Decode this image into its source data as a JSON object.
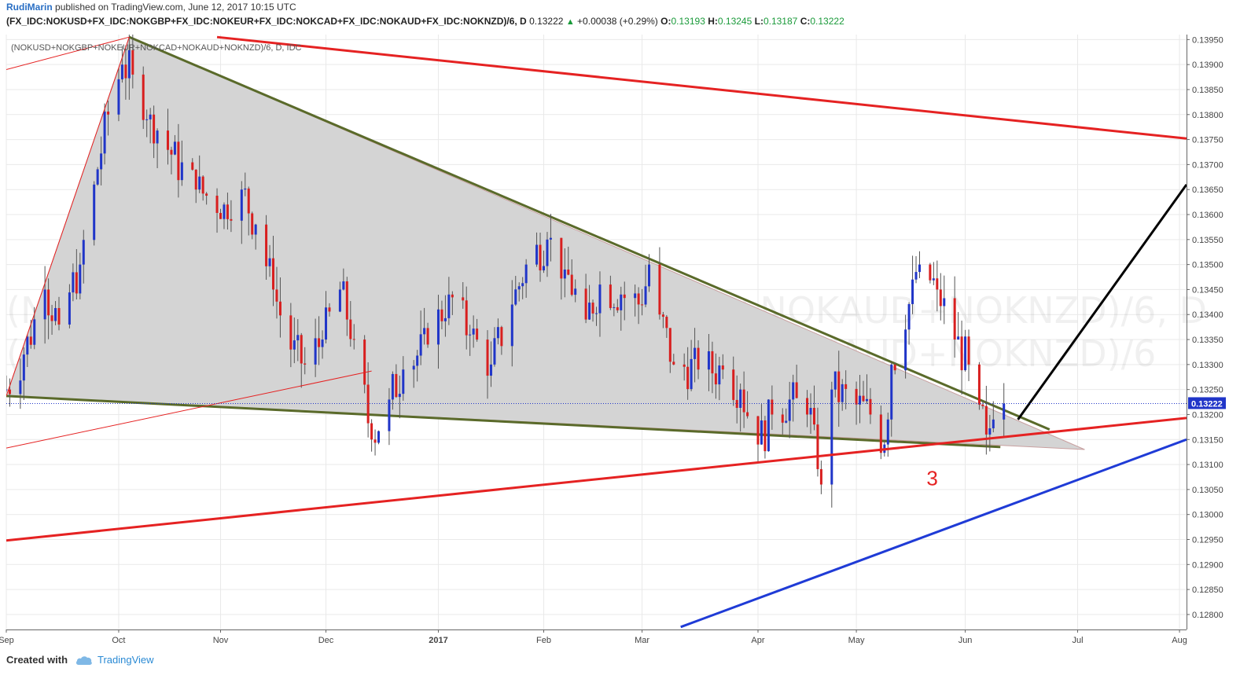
{
  "header": {
    "author": "RudiMarin",
    "published": "published on TradingView.com, June 12, 2017 10:15 UTC",
    "symbol": "(FX_IDC:NOKUSD+FX_IDC:NOKGBP+FX_IDC:NOKEUR+FX_IDC:NOKCAD+FX_IDC:NOKAUD+FX_IDC:NOKNZD)/6, D",
    "last": "0.13222",
    "change": "+0.00038 (+0.29%)",
    "o_label": "O:",
    "o": "0.13193",
    "h_label": "H:",
    "h": "0.13245",
    "l_label": "L:",
    "l": "0.13187",
    "c_label": "C:",
    "c": "0.13222"
  },
  "legend_label": "(NOKUSD+NOKGBP+NOKEUR+NOKCAD+NOKAUD+NOKNZD)/6, D, IDC",
  "watermark": [
    "(NOKUSD+NOKGBP+NOKEUR+NOKCAD+NOKAUD+NOKNZD)/6, D",
    "(NOKUSD+NOKGBP+NOKEUR+NOKCAD+NOKAUD+NOKNZD)/6"
  ],
  "annotation_text": "3",
  "footer": {
    "created": "Created with",
    "brand": "TradingView"
  },
  "colors": {
    "up": "#2035c8",
    "down": "#d81f1f",
    "trend": "#e52222",
    "channel": "#1f3bd6",
    "triangle_edge": "#5a6a2a",
    "triangle_fill": "#d4d4d4"
  },
  "chart_data": {
    "type": "candlestick",
    "title": "(NOKUSD+NOKGBP+NOKEUR+NOKCAD+NOKAUD+NOKNZD)/6, D, IDC",
    "ylim": [
      0.1277,
      0.1396
    ],
    "y_ticks": [
      "0.13950",
      "0.13900",
      "0.13850",
      "0.13800",
      "0.13750",
      "0.13700",
      "0.13650",
      "0.13600",
      "0.13550",
      "0.13500",
      "0.13450",
      "0.13400",
      "0.13350",
      "0.13300",
      "0.13250",
      "0.13200",
      "0.13150",
      "0.13100",
      "0.13050",
      "0.13000",
      "0.12950",
      "0.12900",
      "0.12850",
      "0.12800"
    ],
    "x_ticks": [
      {
        "label": "Sep",
        "date": "2016-09-01"
      },
      {
        "label": "Oct",
        "date": "2016-10-03"
      },
      {
        "label": "Nov",
        "date": "2016-11-01"
      },
      {
        "label": "Dec",
        "date": "2016-12-01"
      },
      {
        "label": "2017",
        "date": "2017-01-02"
      },
      {
        "label": "Feb",
        "date": "2017-02-01"
      },
      {
        "label": "Mar",
        "date": "2017-03-01"
      },
      {
        "label": "Apr",
        "date": "2017-04-03"
      },
      {
        "label": "May",
        "date": "2017-05-01"
      },
      {
        "label": "Jun",
        "date": "2017-06-01"
      },
      {
        "label": "Jul",
        "date": "2017-07-03"
      },
      {
        "label": "Aug",
        "date": "2017-08-01"
      }
    ],
    "xlim": [
      "2016-09-01",
      "2017-08-03"
    ],
    "last_price_label": "0.13222",
    "last_price": 0.13222,
    "anchors": [
      {
        "date": "2016-09-01",
        "close": 0.1325
      },
      {
        "date": "2016-09-06",
        "close": 0.1332
      },
      {
        "date": "2016-09-12",
        "close": 0.1345
      },
      {
        "date": "2016-09-16",
        "close": 0.1338
      },
      {
        "date": "2016-09-22",
        "close": 0.135
      },
      {
        "date": "2016-09-26",
        "close": 0.1366
      },
      {
        "date": "2016-09-30",
        "close": 0.138
      },
      {
        "date": "2016-10-04",
        "close": 0.139
      },
      {
        "date": "2016-10-07",
        "close": 0.1388
      },
      {
        "date": "2016-10-12",
        "close": 0.138
      },
      {
        "date": "2016-10-18",
        "close": 0.1372
      },
      {
        "date": "2016-10-25",
        "close": 0.1365
      },
      {
        "date": "2016-11-02",
        "close": 0.1362
      },
      {
        "date": "2016-11-07",
        "close": 0.1365
      },
      {
        "date": "2016-11-11",
        "close": 0.1358
      },
      {
        "date": "2016-11-16",
        "close": 0.1345
      },
      {
        "date": "2016-11-21",
        "close": 0.1333
      },
      {
        "date": "2016-11-25",
        "close": 0.133
      },
      {
        "date": "2016-11-30",
        "close": 0.1335
      },
      {
        "date": "2016-12-05",
        "close": 0.1345
      },
      {
        "date": "2016-12-09",
        "close": 0.1335
      },
      {
        "date": "2016-12-14",
        "close": 0.1315
      },
      {
        "date": "2016-12-19",
        "close": 0.1323
      },
      {
        "date": "2016-12-23",
        "close": 0.1329
      },
      {
        "date": "2016-12-30",
        "close": 0.1334
      },
      {
        "date": "2017-01-05",
        "close": 0.1344
      },
      {
        "date": "2017-01-11",
        "close": 0.1336
      },
      {
        "date": "2017-01-17",
        "close": 0.133
      },
      {
        "date": "2017-01-23",
        "close": 0.1342
      },
      {
        "date": "2017-01-27",
        "close": 0.135
      },
      {
        "date": "2017-02-02",
        "close": 0.1355
      },
      {
        "date": "2017-02-07",
        "close": 0.1349
      },
      {
        "date": "2017-02-13",
        "close": 0.1339
      },
      {
        "date": "2017-02-17",
        "close": 0.1346
      },
      {
        "date": "2017-02-23",
        "close": 0.1344
      },
      {
        "date": "2017-03-01",
        "close": 0.1342
      },
      {
        "date": "2017-03-03",
        "close": 0.135
      },
      {
        "date": "2017-03-06",
        "close": 0.134
      },
      {
        "date": "2017-03-10",
        "close": 0.133
      },
      {
        "date": "2017-03-17",
        "close": 0.1329
      },
      {
        "date": "2017-03-24",
        "close": 0.1329
      },
      {
        "date": "2017-03-29",
        "close": 0.1325
      },
      {
        "date": "2017-04-03",
        "close": 0.1314
      },
      {
        "date": "2017-04-07",
        "close": 0.132
      },
      {
        "date": "2017-04-12",
        "close": 0.1323
      },
      {
        "date": "2017-04-17",
        "close": 0.132
      },
      {
        "date": "2017-04-19",
        "close": 0.1318
      },
      {
        "date": "2017-04-21",
        "close": 0.1306
      },
      {
        "date": "2017-04-24",
        "close": 0.1325
      },
      {
        "date": "2017-05-01",
        "close": 0.1322
      },
      {
        "date": "2017-05-05",
        "close": 0.132
      },
      {
        "date": "2017-05-09",
        "close": 0.1314
      },
      {
        "date": "2017-05-11",
        "close": 0.133
      },
      {
        "date": "2017-05-15",
        "close": 0.1337
      },
      {
        "date": "2017-05-17",
        "close": 0.1347
      },
      {
        "date": "2017-05-19",
        "close": 0.135
      },
      {
        "date": "2017-05-24",
        "close": 0.1345
      },
      {
        "date": "2017-05-29",
        "close": 0.1335
      },
      {
        "date": "2017-06-02",
        "close": 0.133
      },
      {
        "date": "2017-06-05",
        "close": 0.1322
      },
      {
        "date": "2017-06-07",
        "close": 0.1316
      },
      {
        "date": "2017-06-09",
        "close": 0.1319
      },
      {
        "date": "2017-06-12",
        "close": 0.13222
      }
    ],
    "drawings": [
      {
        "name": "upper-red-trendline",
        "type": "line",
        "from": {
          "date": "2016-10-31",
          "price": 0.13955
        },
        "to": {
          "date": "2017-08-03",
          "price": 0.13752
        },
        "color": "#e52222"
      },
      {
        "name": "lower-red-trendline",
        "type": "line",
        "from": {
          "date": "2016-09-01",
          "price": 0.12948
        },
        "to": {
          "date": "2017-08-03",
          "price": 0.13193
        },
        "color": "#e52222"
      },
      {
        "name": "blue-channel-line",
        "type": "line",
        "from": {
          "date": "2017-03-12",
          "price": 0.12775
        },
        "to": {
          "date": "2017-08-03",
          "price": 0.1315
        },
        "color": "#1f3bd6"
      },
      {
        "name": "black-projection-line",
        "type": "line",
        "from": {
          "date": "2017-06-16",
          "price": 0.1319
        },
        "to": {
          "date": "2017-08-03",
          "price": 0.1366
        },
        "color": "#000000"
      },
      {
        "name": "red-thin-upper",
        "type": "line",
        "from": {
          "date": "2016-09-01",
          "price": 0.1389
        },
        "to": {
          "date": "2016-10-06",
          "price": 0.13955
        },
        "color": "#e52222"
      },
      {
        "name": "red-thin-lower",
        "type": "line",
        "from": {
          "date": "2016-09-01",
          "price": 0.13133
        },
        "to": {
          "date": "2016-12-14",
          "price": 0.13287
        },
        "color": "#e52222"
      },
      {
        "name": "red-thin-left",
        "type": "line",
        "from": {
          "date": "2016-09-01",
          "price": 0.13237
        },
        "to": {
          "date": "2016-10-06",
          "price": 0.13955
        },
        "color": "#e52222"
      }
    ],
    "triangle": {
      "points": [
        {
          "date": "2016-09-01",
          "price": 0.13237
        },
        {
          "date": "2016-10-06",
          "price": 0.13955
        },
        {
          "date": "2017-07-05",
          "price": 0.1313
        }
      ],
      "fill": "#d4d4d4"
    },
    "triangle_edges": [
      {
        "from": {
          "date": "2016-10-06",
          "price": 0.13955
        },
        "to": {
          "date": "2017-06-25",
          "price": 0.1317
        }
      },
      {
        "from": {
          "date": "2016-09-01",
          "price": 0.13237
        },
        "to": {
          "date": "2017-06-11",
          "price": 0.13135
        }
      }
    ],
    "annotation": {
      "text": "3",
      "date": "2017-05-21",
      "price": 0.1309
    }
  }
}
